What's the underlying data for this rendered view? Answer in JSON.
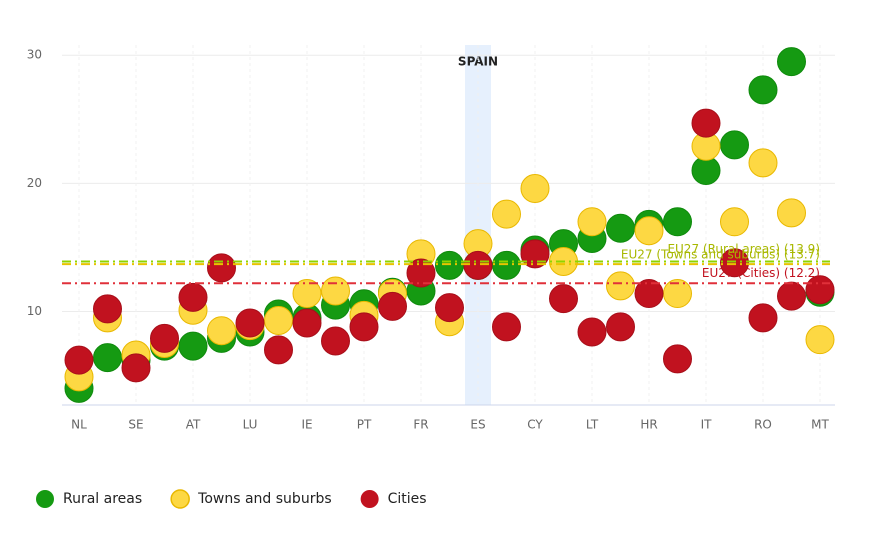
{
  "chart_data": {
    "type": "scatter",
    "categories": [
      "NL",
      null,
      "SE",
      null,
      "AT",
      null,
      "LU",
      null,
      "IE",
      null,
      "PT",
      null,
      "FR",
      null,
      "ES",
      null,
      "CY",
      null,
      "LT",
      null,
      "HR",
      null,
      "IT",
      null,
      "RO",
      null,
      "MT"
    ],
    "series": [
      {
        "name": "Rural areas",
        "color": "#159a12",
        "values": [
          4.0,
          6.4,
          6.2,
          7.3,
          7.3,
          7.9,
          8.4,
          9.8,
          9.5,
          10.5,
          10.6,
          11.5,
          11.6,
          13.6,
          13.6,
          13.6,
          14.8,
          15.3,
          15.7,
          16.5,
          16.8,
          17.0,
          21.0,
          23.0,
          27.3,
          29.5,
          11.5
        ]
      },
      {
        "name": "Towns and suburbs",
        "color": "#fdd843",
        "values": [
          4.9,
          9.5,
          6.6,
          7.5,
          10.1,
          8.5,
          8.9,
          9.3,
          11.4,
          11.6,
          9.7,
          11.4,
          14.5,
          9.2,
          15.3,
          17.6,
          19.6,
          13.9,
          17.0,
          12.0,
          16.3,
          11.4,
          22.9,
          17.0,
          21.6,
          17.7,
          7.8
        ]
      },
      {
        "name": "Cities",
        "color": "#c1121f",
        "values": [
          6.2,
          10.2,
          5.6,
          7.9,
          11.1,
          13.4,
          9.1,
          7.0,
          9.1,
          7.7,
          8.8,
          10.4,
          13.0,
          10.3,
          13.6,
          8.8,
          14.5,
          11.0,
          8.4,
          8.8,
          11.4,
          6.3,
          24.7,
          13.8,
          9.5,
          11.2,
          11.7
        ]
      }
    ],
    "reference_lines": [
      {
        "label": "EU27 (Rural areas) (13.9)",
        "value": 13.9,
        "color": "#8fd400"
      },
      {
        "label": "EU27 (Towns and suburbs) (13.7)",
        "value": 13.7,
        "color": "#e8c400"
      },
      {
        "label": "EU27 (Cities) (12.2)",
        "value": 12.2,
        "color": "#e0303a"
      }
    ],
    "highlight": {
      "category": "ES",
      "label": "SPAIN"
    },
    "ylim": [
      2.7,
      30.8
    ],
    "yticks": [
      10,
      20,
      30
    ],
    "grid": true
  }
}
